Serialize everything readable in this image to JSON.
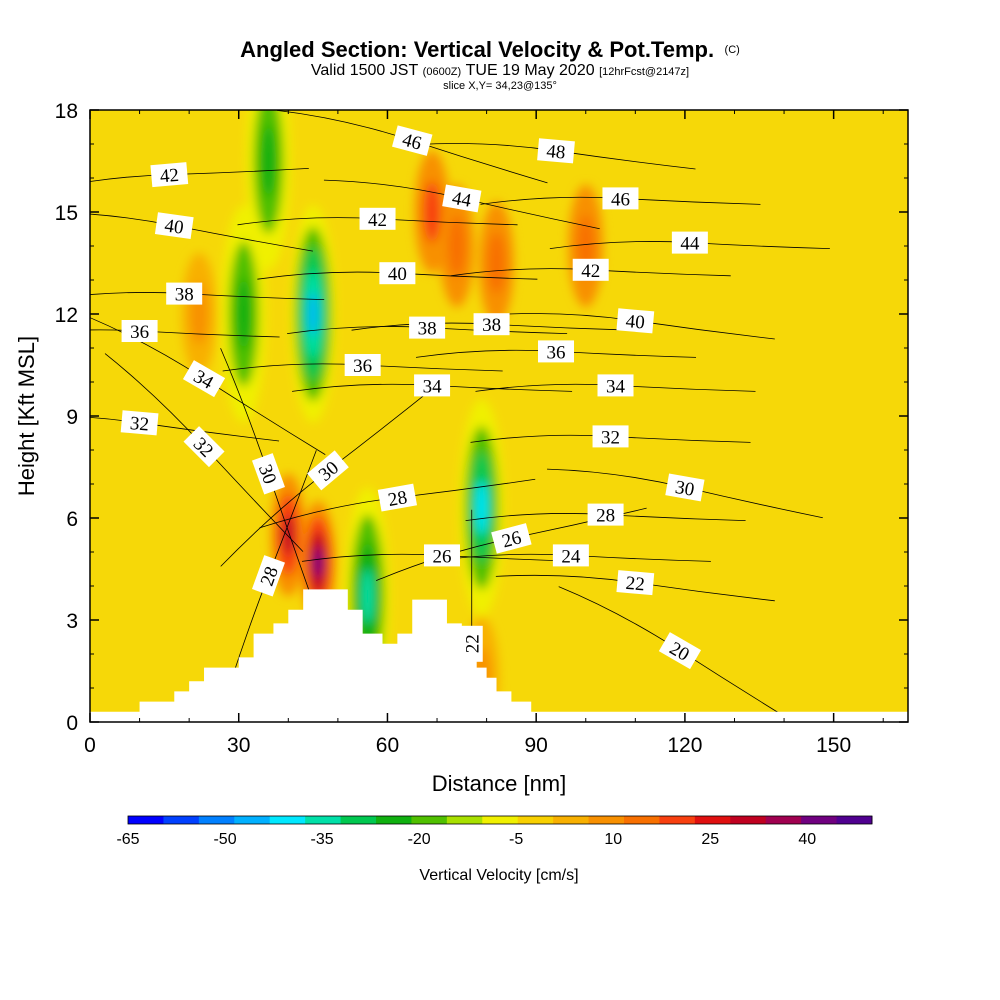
{
  "header": {
    "title_main": "Angled Section: Vertical Velocity & Pot.Temp.",
    "title_units": "(C)",
    "valid_a": "Valid 1500 JST",
    "valid_utc": "(0600Z)",
    "valid_b": "TUE 19 May 2020",
    "forecast": "[12hrFcst@2147z]",
    "slice": "slice X,Y= 34,23@135°"
  },
  "colors": {
    "palette": [
      "#0000ff",
      "#0040ff",
      "#0080ff",
      "#00b0ff",
      "#00e8ff",
      "#00e0a8",
      "#00c850",
      "#10b010",
      "#50c000",
      "#a8e000",
      "#f0f000",
      "#f8d000",
      "#f8b000",
      "#f89000",
      "#f87000",
      "#f84010",
      "#e01010",
      "#c00020",
      "#a00050",
      "#700080",
      "#500090"
    ],
    "terrain": "#ffffff",
    "contour": "#000000"
  },
  "chart_data": {
    "type": "heatmap",
    "title": "Angled Section: Vertical Velocity & Pot.Temp. (C)",
    "subtitle": "Valid 1500 JST (0600Z) TUE 19 May 2020 [12hrFcst@2147z]",
    "xlabel": "Distance [nm]",
    "ylabel": "Height [Kft MSL]",
    "xlim": [
      0,
      165
    ],
    "ylim": [
      0,
      18
    ],
    "x_ticks": [
      0,
      30,
      60,
      90,
      120,
      150
    ],
    "y_ticks": [
      0,
      3,
      6,
      9,
      12,
      15,
      18
    ],
    "colorbar": {
      "title": "Vertical Velocity [cm/s]",
      "range": [
        -65,
        50
      ],
      "step": 5,
      "tick_values": [
        -65,
        -50,
        -35,
        -20,
        -5,
        10,
        25,
        40
      ],
      "tick_labels": [
        "-65",
        "-50",
        "-35",
        "-20",
        "-5",
        "10",
        "25",
        "40"
      ]
    },
    "vertical_velocity_features": [
      {
        "x": 45,
        "y": 12,
        "w": -45
      },
      {
        "x": 36,
        "y": 16.5,
        "w": -25
      },
      {
        "x": 31,
        "y": 12,
        "w": -25
      },
      {
        "x": 46,
        "y": 4.7,
        "w": 40
      },
      {
        "x": 40,
        "y": 5.5,
        "w": 30
      },
      {
        "x": 56,
        "y": 3.7,
        "w": -35
      },
      {
        "x": 79,
        "y": 6.3,
        "w": -40
      },
      {
        "x": 69,
        "y": 15,
        "w": 20
      },
      {
        "x": 74,
        "y": 14,
        "w": 15
      },
      {
        "x": 82,
        "y": 13.5,
        "w": 15
      },
      {
        "x": 100,
        "y": 14,
        "w": 15
      },
      {
        "x": 22,
        "y": 12,
        "w": 10
      },
      {
        "x": 79,
        "y": 1.3,
        "w": 10
      }
    ],
    "terrain_profile": [
      [
        0,
        0.3
      ],
      [
        10,
        0.3
      ],
      [
        10,
        0.6
      ],
      [
        17,
        0.6
      ],
      [
        17,
        0.9
      ],
      [
        20,
        0.9
      ],
      [
        20,
        1.2
      ],
      [
        23,
        1.2
      ],
      [
        23,
        1.6
      ],
      [
        30,
        1.6
      ],
      [
        30,
        1.9
      ],
      [
        33,
        1.9
      ],
      [
        33,
        2.6
      ],
      [
        37,
        2.6
      ],
      [
        37,
        2.9
      ],
      [
        40,
        2.9
      ],
      [
        40,
        3.3
      ],
      [
        43,
        3.3
      ],
      [
        43,
        3.9
      ],
      [
        52,
        3.9
      ],
      [
        52,
        3.3
      ],
      [
        55,
        3.3
      ],
      [
        55,
        2.6
      ],
      [
        59,
        2.6
      ],
      [
        59,
        2.3
      ],
      [
        62,
        2.3
      ],
      [
        62,
        2.6
      ],
      [
        65,
        2.6
      ],
      [
        65,
        3.6
      ],
      [
        72,
        3.6
      ],
      [
        72,
        2.9
      ],
      [
        75,
        2.9
      ],
      [
        75,
        2.3
      ],
      [
        78,
        2.3
      ],
      [
        78,
        1.6
      ],
      [
        80,
        1.6
      ],
      [
        80,
        1.3
      ],
      [
        82,
        1.3
      ],
      [
        82,
        0.9
      ],
      [
        85,
        0.9
      ],
      [
        85,
        0.6
      ],
      [
        89,
        0.6
      ],
      [
        89,
        0.3
      ],
      [
        165,
        0.3
      ]
    ],
    "potential_temperature_contours": [
      {
        "label": "42",
        "label_at": [
          16,
          16.1
        ],
        "label_angle": -5
      },
      {
        "label": "40",
        "label_at": [
          17,
          14.6
        ],
        "label_angle": 8
      },
      {
        "label": "38",
        "label_at": [
          19,
          12.6
        ],
        "label_angle": 0
      },
      {
        "label": "36",
        "label_at": [
          10,
          11.5
        ],
        "label_angle": 0
      },
      {
        "label": "34",
        "label_at": [
          23,
          10.1
        ],
        "label_angle": 30
      },
      {
        "label": "32",
        "label_at": [
          10,
          8.8
        ],
        "label_angle": 5
      },
      {
        "label": "32",
        "label_at": [
          23,
          8.1
        ],
        "label_angle": 45
      },
      {
        "label": "30",
        "label_at": [
          36,
          7.3
        ],
        "label_angle": 70
      },
      {
        "label": "30",
        "label_at": [
          48,
          7.4
        ],
        "label_angle": -40
      },
      {
        "label": "28",
        "label_at": [
          36,
          4.3
        ],
        "label_angle": -70
      },
      {
        "label": "28",
        "label_at": [
          62,
          6.6
        ],
        "label_angle": -10
      },
      {
        "label": "26",
        "label_at": [
          71,
          4.9
        ],
        "label_angle": 0
      },
      {
        "label": "26",
        "label_at": [
          85,
          5.4
        ],
        "label_angle": -15
      },
      {
        "label": "24",
        "label_at": [
          97,
          4.9
        ],
        "label_angle": 0
      },
      {
        "label": "22",
        "label_at": [
          77,
          2.3
        ],
        "label_angle": -90
      },
      {
        "label": "22",
        "label_at": [
          110,
          4.1
        ],
        "label_angle": 5
      },
      {
        "label": "20",
        "label_at": [
          119,
          2.1
        ],
        "label_angle": 30
      },
      {
        "label": "46",
        "label_at": [
          65,
          17.1
        ],
        "label_angle": 15
      },
      {
        "label": "44",
        "label_at": [
          75,
          15.4
        ],
        "label_angle": 10
      },
      {
        "label": "42",
        "label_at": [
          58,
          14.8
        ],
        "label_angle": 0
      },
      {
        "label": "40",
        "label_at": [
          62,
          13.2
        ],
        "label_angle": 0
      },
      {
        "label": "38",
        "label_at": [
          68,
          11.6
        ],
        "label_angle": 0
      },
      {
        "label": "38",
        "label_at": [
          81,
          11.7
        ],
        "label_angle": 0
      },
      {
        "label": "36",
        "label_at": [
          55,
          10.5
        ],
        "label_angle": 0
      },
      {
        "label": "36",
        "label_at": [
          94,
          10.9
        ],
        "label_angle": 0
      },
      {
        "label": "34",
        "label_at": [
          69,
          9.9
        ],
        "label_angle": 0
      },
      {
        "label": "34",
        "label_at": [
          106,
          9.9
        ],
        "label_angle": 0
      },
      {
        "label": "48",
        "label_at": [
          94,
          16.8
        ],
        "label_angle": 5
      },
      {
        "label": "46",
        "label_at": [
          107,
          15.4
        ],
        "label_angle": 0
      },
      {
        "label": "44",
        "label_at": [
          121,
          14.1
        ],
        "label_angle": 0
      },
      {
        "label": "42",
        "label_at": [
          101,
          13.3
        ],
        "label_angle": 0
      },
      {
        "label": "40",
        "label_at": [
          110,
          11.8
        ],
        "label_angle": 5
      },
      {
        "label": "32",
        "label_at": [
          105,
          8.4
        ],
        "label_angle": 0
      },
      {
        "label": "30",
        "label_at": [
          120,
          6.9
        ],
        "label_angle": 10
      },
      {
        "label": "28",
        "label_at": [
          104,
          6.1
        ],
        "label_angle": 0
      }
    ]
  }
}
